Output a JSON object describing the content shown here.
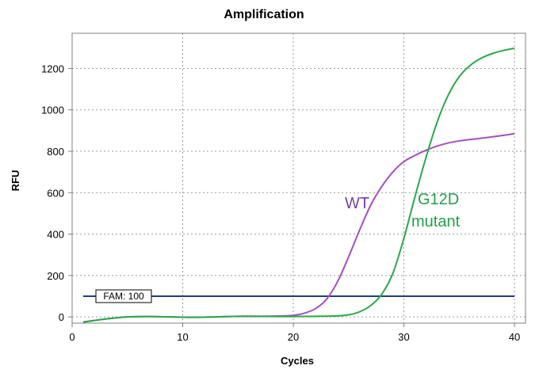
{
  "chart_data": {
    "type": "line",
    "title": "Amplification",
    "xlabel": "Cycles",
    "ylabel": "RFU",
    "xlim": [
      0,
      41
    ],
    "ylim": [
      -30,
      1370
    ],
    "xticks": [
      0,
      10,
      20,
      30,
      40
    ],
    "yticks": [
      0,
      200,
      400,
      600,
      800,
      1000,
      1200
    ],
    "grid": true,
    "threshold": {
      "label": "FAM: 100",
      "value": 100,
      "color": "#1f3f7a"
    },
    "series": [
      {
        "name": "WT",
        "color": "#a64fbf",
        "label_color": "#7a3fa0",
        "x": [
          1,
          3,
          5,
          7,
          9,
          11,
          13,
          15,
          17,
          19,
          20,
          21,
          22,
          23,
          24,
          25,
          26,
          27,
          28,
          29,
          30,
          31,
          32,
          33,
          34,
          35,
          36,
          37,
          38,
          39,
          40
        ],
        "y": [
          -25,
          -10,
          0,
          2,
          0,
          -2,
          0,
          3,
          3,
          5,
          8,
          18,
          40,
          85,
          170,
          290,
          420,
          540,
          630,
          700,
          750,
          780,
          805,
          825,
          840,
          850,
          857,
          863,
          870,
          877,
          885
        ]
      },
      {
        "name": "G12D mutant",
        "color": "#2aa84a",
        "label_color": "#22a04a",
        "x": [
          1,
          3,
          5,
          7,
          9,
          11,
          13,
          15,
          17,
          19,
          20,
          22,
          24,
          25,
          26,
          27,
          28,
          29,
          30,
          31,
          32,
          33,
          34,
          35,
          36,
          37,
          38,
          39,
          40
        ],
        "y": [
          -25,
          -10,
          0,
          2,
          0,
          -2,
          0,
          3,
          3,
          2,
          2,
          3,
          5,
          10,
          25,
          55,
          110,
          210,
          380,
          580,
          770,
          940,
          1070,
          1160,
          1215,
          1250,
          1272,
          1287,
          1298
        ]
      }
    ]
  }
}
